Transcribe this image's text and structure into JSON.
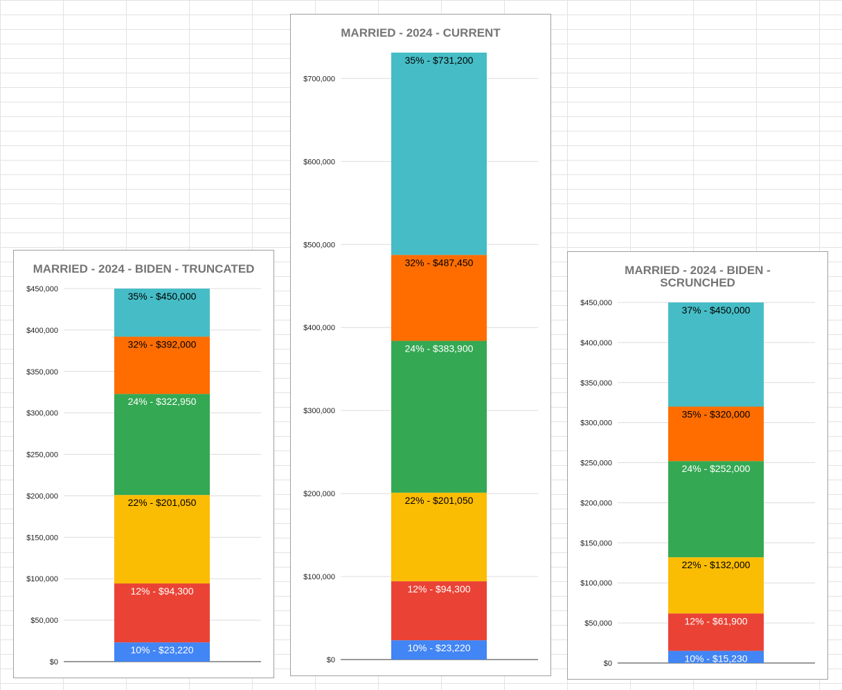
{
  "chart_data": [
    {
      "type": "bar",
      "stacked": true,
      "title": "MARRIED - 2024 - BIDEN - TRUNCATED",
      "ylim": [
        0,
        450000
      ],
      "ytick_values": [
        0,
        50000,
        100000,
        150000,
        200000,
        250000,
        300000,
        350000,
        400000,
        450000
      ],
      "ytick_labels": [
        "$0",
        "$50,000",
        "$100,000",
        "$150,000",
        "$200,000",
        "$250,000",
        "$300,000",
        "$350,000",
        "$400,000",
        "$450,000"
      ],
      "gridlines": true,
      "segments": [
        {
          "label": "10% - $23,220",
          "top": 23220,
          "color": "#4285f4",
          "text_color": "#ffffff"
        },
        {
          "label": "12% - $94,300",
          "top": 94300,
          "color": "#ea4335",
          "text_color": "#ffffff"
        },
        {
          "label": "22% - $201,050",
          "top": 201050,
          "color": "#fbbc04",
          "text_color": "#000000"
        },
        {
          "label": "24% - $322,950",
          "top": 322950,
          "color": "#34a853",
          "text_color": "#ffffff"
        },
        {
          "label": "32% - $392,000",
          "top": 392000,
          "color": "#ff6d01",
          "text_color": "#000000"
        },
        {
          "label": "35% - $450,000",
          "top": 450000,
          "color": "#46bdc6",
          "text_color": "#000000"
        }
      ]
    },
    {
      "type": "bar",
      "stacked": true,
      "title": "MARRIED - 2024 - CURRENT",
      "ylim": [
        0,
        731200
      ],
      "ytick_values": [
        0,
        100000,
        200000,
        300000,
        400000,
        500000,
        600000,
        700000
      ],
      "ytick_labels": [
        "$0",
        "$100,000",
        "$200,000",
        "$300,000",
        "$400,000",
        "$500,000",
        "$600,000",
        "$700,000"
      ],
      "gridlines": true,
      "segments": [
        {
          "label": "10% - $23,220",
          "top": 23220,
          "color": "#4285f4",
          "text_color": "#ffffff"
        },
        {
          "label": "12% - $94,300",
          "top": 94300,
          "color": "#ea4335",
          "text_color": "#ffffff"
        },
        {
          "label": "22% - $201,050",
          "top": 201050,
          "color": "#fbbc04",
          "text_color": "#000000"
        },
        {
          "label": "24% - $383,900",
          "top": 383900,
          "color": "#34a853",
          "text_color": "#ffffff"
        },
        {
          "label": "32% - $487,450",
          "top": 487450,
          "color": "#ff6d01",
          "text_color": "#000000"
        },
        {
          "label": "35% - $731,200",
          "top": 731200,
          "color": "#46bdc6",
          "text_color": "#000000"
        }
      ]
    },
    {
      "type": "bar",
      "stacked": true,
      "title": "MARRIED - 2024 - BIDEN - SCRUNCHED",
      "ylim": [
        0,
        450000
      ],
      "ytick_values": [
        0,
        50000,
        100000,
        150000,
        200000,
        250000,
        300000,
        350000,
        400000,
        450000
      ],
      "ytick_labels": [
        "$0",
        "$50,000",
        "$100,000",
        "$150,000",
        "$200,000",
        "$250,000",
        "$300,000",
        "$350,000",
        "$400,000",
        "$450,000"
      ],
      "gridlines": true,
      "segments": [
        {
          "label": "10% - $15,230",
          "top": 15230,
          "color": "#4285f4",
          "text_color": "#ffffff"
        },
        {
          "label": "12% - $61,900",
          "top": 61900,
          "color": "#ea4335",
          "text_color": "#ffffff"
        },
        {
          "label": "22% - $132,000",
          "top": 132000,
          "color": "#fbbc04",
          "text_color": "#000000"
        },
        {
          "label": "24% - $252,000",
          "top": 252000,
          "color": "#34a853",
          "text_color": "#ffffff"
        },
        {
          "label": "35% - $320,000",
          "top": 320000,
          "color": "#ff6d01",
          "text_color": "#000000"
        },
        {
          "label": "37% - $450,000",
          "top": 450000,
          "color": "#46bdc6",
          "text_color": "#000000"
        }
      ]
    }
  ]
}
